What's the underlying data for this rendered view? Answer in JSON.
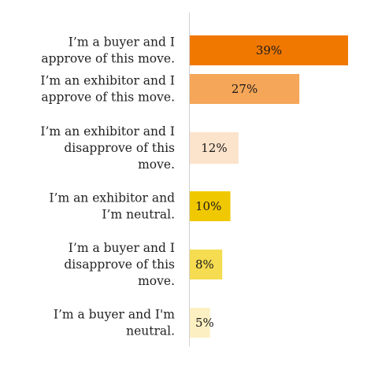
{
  "chart_data": {
    "type": "bar",
    "orientation": "horizontal",
    "title": "",
    "xlabel": "",
    "ylabel": "",
    "categories": [
      [
        "I’m a buyer and I",
        "approve of this move."
      ],
      [
        "I’m an exhibitor and I",
        "approve of this move."
      ],
      [
        "I’m an exhibitor and I",
        "disapprove of this",
        "move."
      ],
      [
        "I’m an exhibitor and",
        "I’m neutral."
      ],
      [
        "I’m a buyer and I",
        "disapprove of this",
        "move."
      ],
      [
        "I’m a buyer and I'm",
        "neutral."
      ]
    ],
    "values": [
      39,
      27,
      12,
      10,
      8,
      5
    ],
    "value_labels": [
      "39%",
      "27%",
      "12%",
      "10%",
      "8%",
      "5%"
    ],
    "colors": [
      "#F07800",
      "#F5A658",
      "#FCE3CB",
      "#F0C800",
      "#F5DC50",
      "#FCF0C3"
    ],
    "axis_color": "#d0d0d0",
    "xlim": [
      0,
      39
    ],
    "grid": false,
    "legend": "none"
  }
}
